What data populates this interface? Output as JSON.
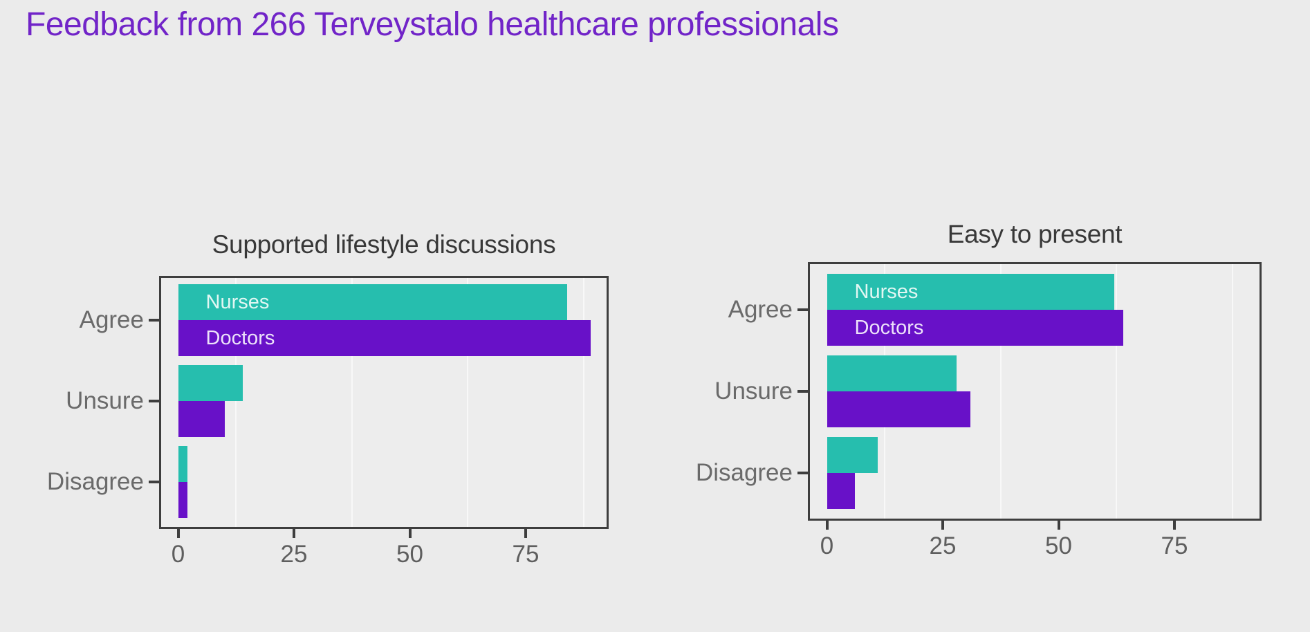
{
  "slide": {
    "title": "Feedback from 266 Terveystalo healthcare professionals",
    "title_color": "#7124C8",
    "background_color": "#EBEBEB"
  },
  "colors": {
    "nurses_bar": "#26BEAE",
    "doctors_bar": "#6811C8",
    "nurses_label_text": "#E2F7F3",
    "doctors_label_text": "#EDE2FA",
    "axis": "#3E3E3E",
    "category_text": "#6A6A6A",
    "tick_text": "#5E5E5E",
    "chart_title_text": "#383838",
    "panel_background": "#EDEDED",
    "minor_gridline": "#F8F8F8"
  },
  "chart_data": [
    {
      "type": "bar",
      "orientation": "horizontal",
      "title": "Supported lifestyle discussions",
      "categories": [
        "Agree",
        "Unsure",
        "Disagree"
      ],
      "series": [
        {
          "name": "Nurses",
          "values": [
            84,
            14,
            2
          ]
        },
        {
          "name": "Doctors",
          "values": [
            89,
            10,
            2
          ]
        }
      ],
      "x_ticks": [
        0,
        25,
        50,
        75
      ],
      "xlim": [
        -4,
        93
      ],
      "minor_gridlines_x": [
        12.5,
        37.5,
        62.5,
        87.5
      ],
      "grid": "minor vertical only",
      "legend_position": "labels inside first bars"
    },
    {
      "type": "bar",
      "orientation": "horizontal",
      "title": "Easy to present",
      "categories": [
        "Agree",
        "Unsure",
        "Disagree"
      ],
      "series": [
        {
          "name": "Nurses",
          "values": [
            62,
            28,
            11
          ]
        },
        {
          "name": "Doctors",
          "values": [
            64,
            31,
            6
          ]
        }
      ],
      "x_ticks": [
        0,
        25,
        50,
        75
      ],
      "xlim": [
        -4,
        93
      ],
      "minor_gridlines_x": [
        12.5,
        37.5,
        62.5,
        87.5
      ],
      "grid": "minor vertical only",
      "legend_position": "labels inside first bars"
    }
  ]
}
